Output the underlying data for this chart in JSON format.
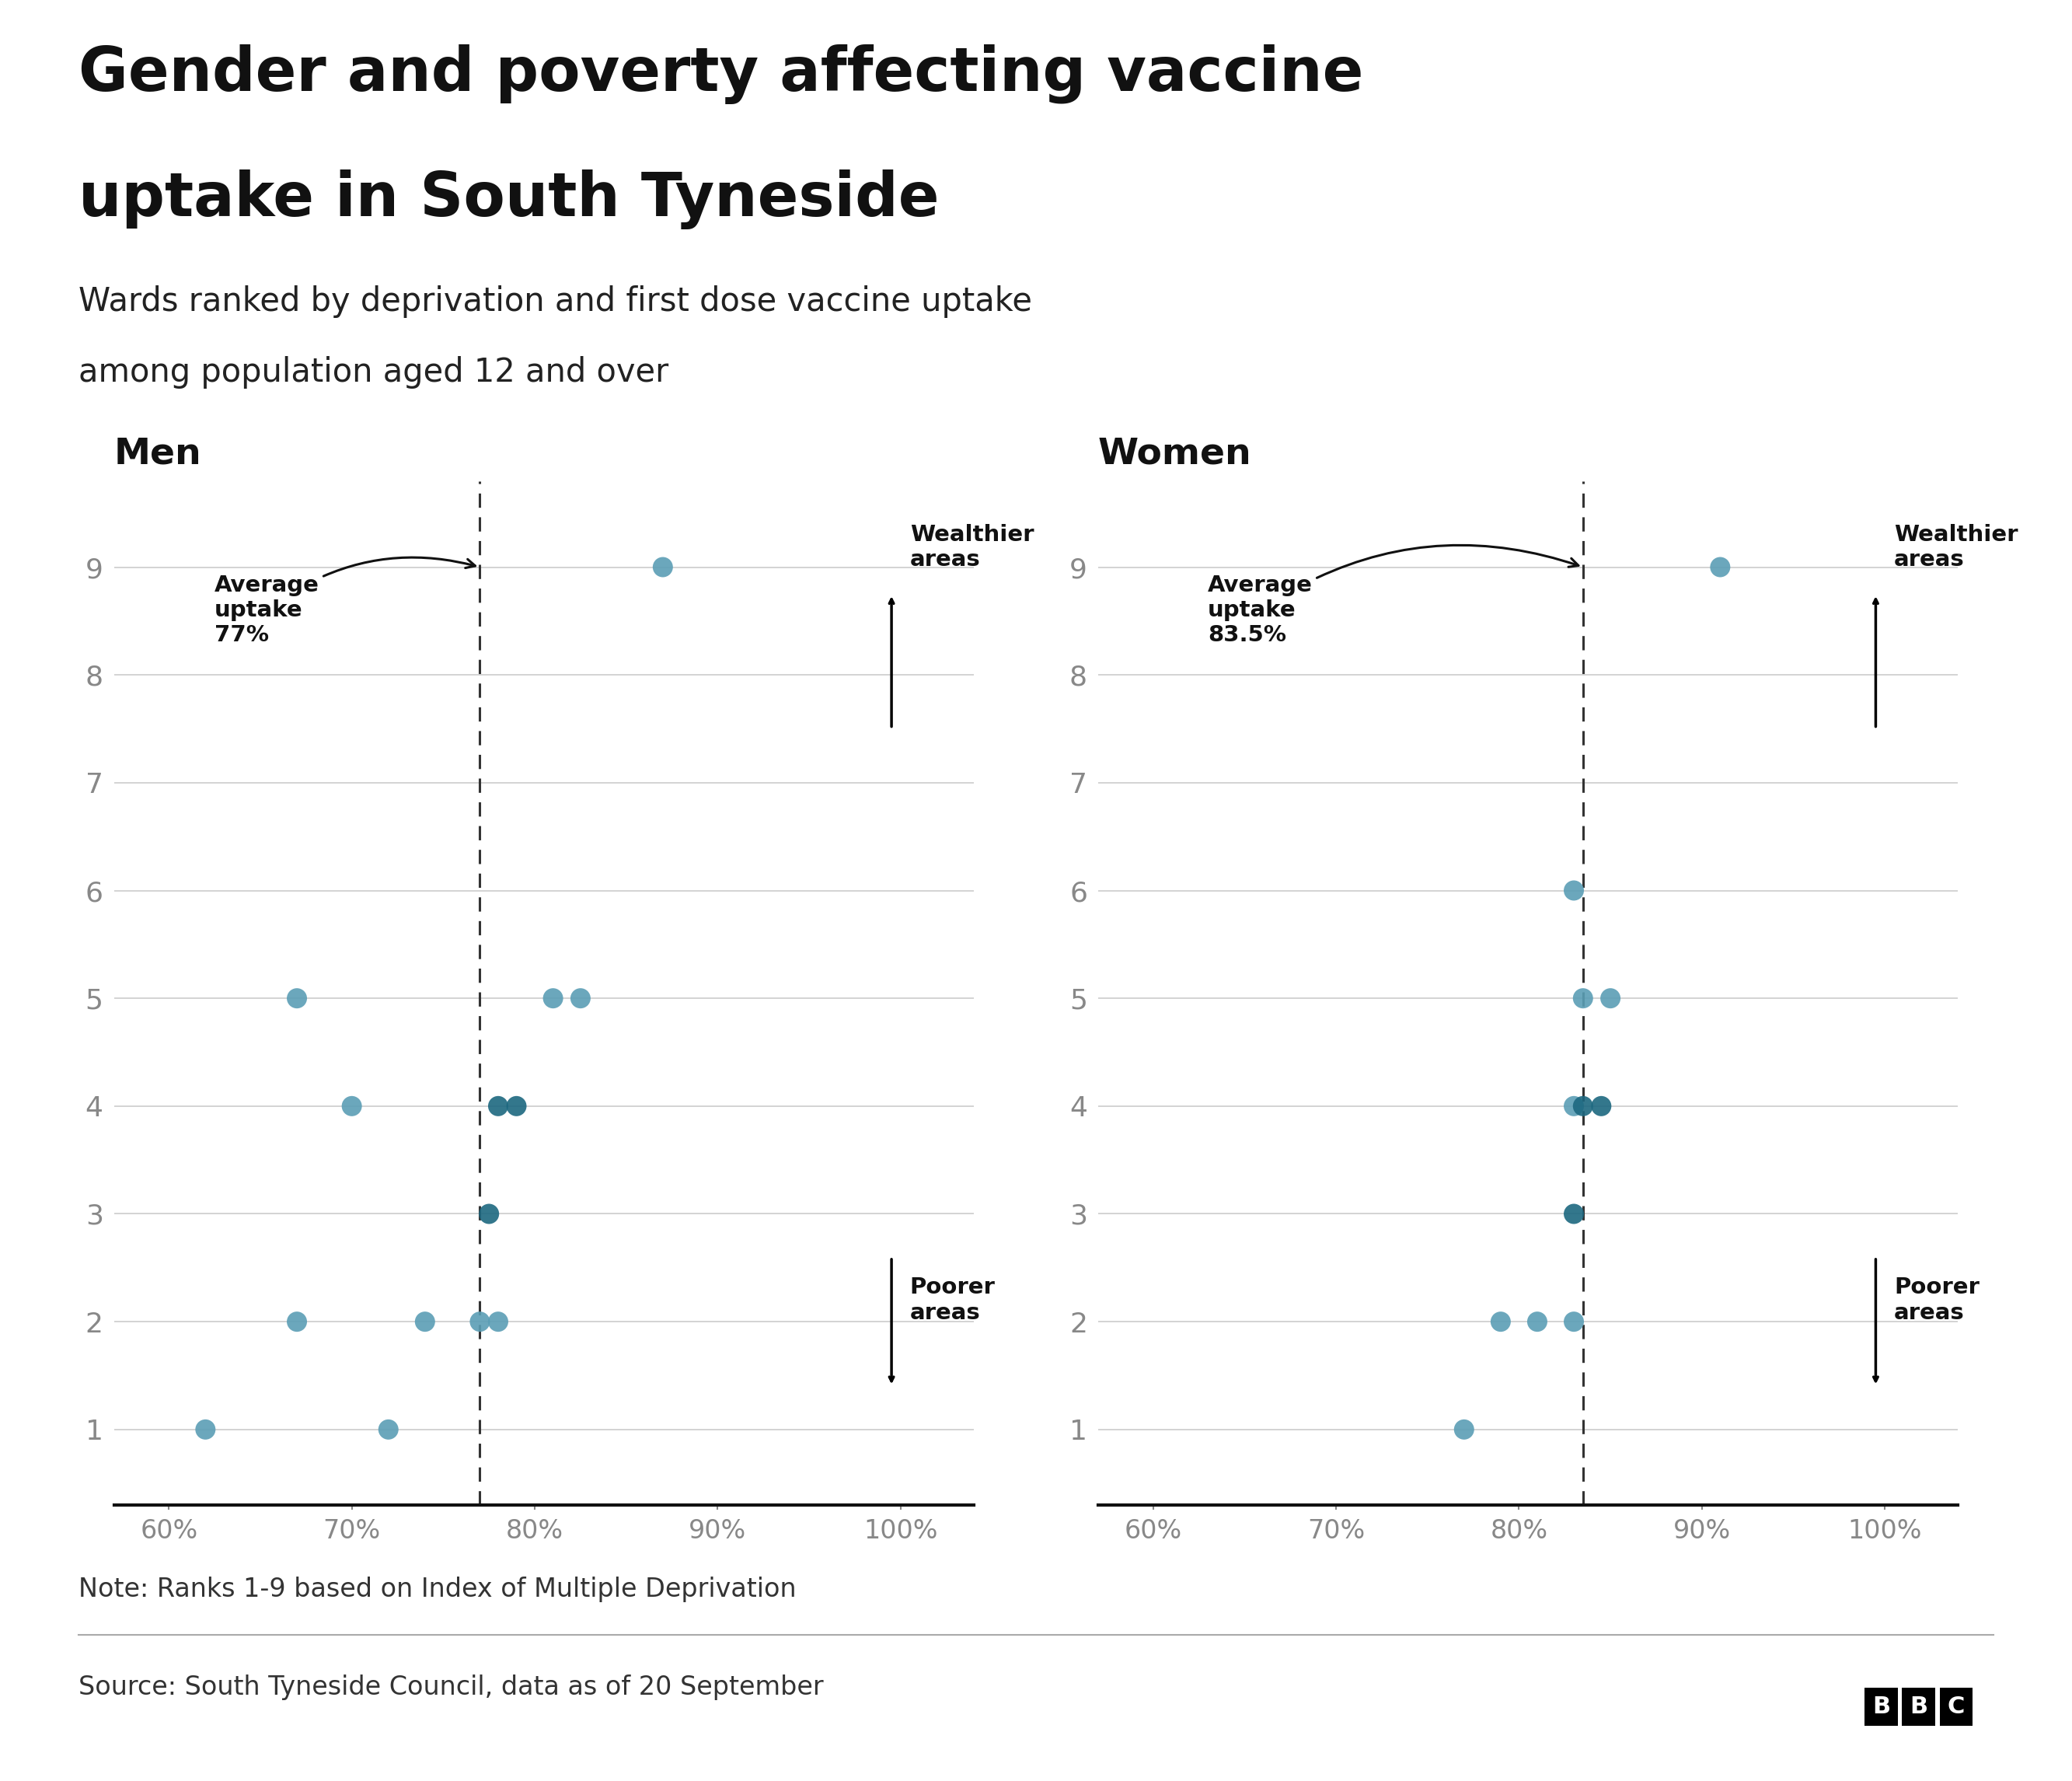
{
  "title_line1": "Gender and poverty affecting vaccine",
  "title_line2": "uptake in South Tyneside",
  "subtitle_line1": "Wards ranked by deprivation and first dose vaccine uptake",
  "subtitle_line2": "among population aged 12 and over",
  "men_label": "Men",
  "women_label": "Women",
  "men_avg": 77.0,
  "women_avg": 83.5,
  "men_avg_label": "Average\nuptake\n77%",
  "women_avg_label": "Average\nuptake\n83.5%",
  "note": "Note: Ranks 1-9 based on Index of Multiple Deprivation",
  "source": "Source: South Tyneside Council, data as of 20 September",
  "bbc_label": "BBC",
  "men_data": [
    {
      "rank": 9,
      "uptake": 87,
      "dark": false
    },
    {
      "rank": 5,
      "uptake": 67,
      "dark": false
    },
    {
      "rank": 5,
      "uptake": 81,
      "dark": false
    },
    {
      "rank": 5,
      "uptake": 82.5,
      "dark": false
    },
    {
      "rank": 4,
      "uptake": 70,
      "dark": false
    },
    {
      "rank": 4,
      "uptake": 78,
      "dark": true
    },
    {
      "rank": 4,
      "uptake": 79,
      "dark": true
    },
    {
      "rank": 3,
      "uptake": 77.5,
      "dark": true
    },
    {
      "rank": 2,
      "uptake": 67,
      "dark": false
    },
    {
      "rank": 2,
      "uptake": 74,
      "dark": false
    },
    {
      "rank": 2,
      "uptake": 77,
      "dark": false
    },
    {
      "rank": 2,
      "uptake": 78,
      "dark": false
    },
    {
      "rank": 1,
      "uptake": 62,
      "dark": false
    },
    {
      "rank": 1,
      "uptake": 72,
      "dark": false
    }
  ],
  "women_data": [
    {
      "rank": 9,
      "uptake": 91,
      "dark": false
    },
    {
      "rank": 6,
      "uptake": 83,
      "dark": false
    },
    {
      "rank": 5,
      "uptake": 83.5,
      "dark": false
    },
    {
      "rank": 5,
      "uptake": 85,
      "dark": false
    },
    {
      "rank": 4,
      "uptake": 83,
      "dark": false
    },
    {
      "rank": 4,
      "uptake": 83.5,
      "dark": true
    },
    {
      "rank": 4,
      "uptake": 84.5,
      "dark": true
    },
    {
      "rank": 3,
      "uptake": 83,
      "dark": true
    },
    {
      "rank": 2,
      "uptake": 79,
      "dark": false
    },
    {
      "rank": 2,
      "uptake": 81,
      "dark": false
    },
    {
      "rank": 2,
      "uptake": 83,
      "dark": false
    },
    {
      "rank": 1,
      "uptake": 77,
      "dark": false
    }
  ],
  "dot_color_light": "#5B9EB5",
  "dot_color_dark": "#1D6880",
  "xlim": [
    57,
    104
  ],
  "ylim": [
    0.3,
    9.8
  ],
  "xticks": [
    60,
    70,
    80,
    90,
    100
  ],
  "yticks": [
    1,
    2,
    3,
    4,
    5,
    6,
    7,
    8,
    9
  ],
  "bg_color": "#ffffff",
  "text_color": "#111111",
  "subtitle_color": "#222222",
  "axis_label_color": "#888888",
  "grid_color": "#cccccc",
  "dashed_color": "#333333",
  "dot_size": 350,
  "dot_alpha": 0.9
}
